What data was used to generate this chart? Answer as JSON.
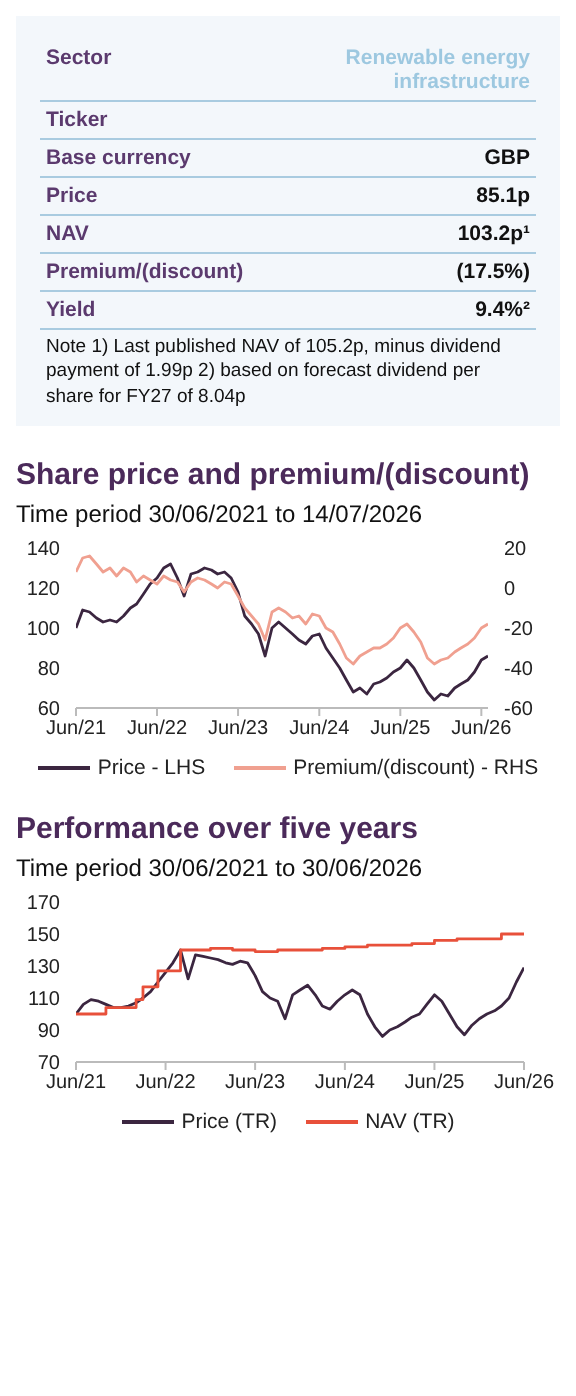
{
  "chart_data": [
    {
      "type": "other",
      "categories": [
        "Sector",
        "Ticker",
        "Base currency",
        "Price",
        "NAV",
        "Premium/(discount)",
        "Yield"
      ],
      "value_labels": [
        "Renewable energy infrastructure",
        null,
        "GBP",
        "85.1p",
        "103.2p¹",
        "(17.5%)",
        "9.4%²"
      ],
      "annotations": [
        "Note 1) Last published NAV of 105.2p, minus dividend payment of 1.99p 2) based on forecast dividend per share for FY27 of 8.04p"
      ]
    },
    {
      "type": "line",
      "title": "Share price and premium/(discount)",
      "subtitle": "Time period 30/06/2021 to 14/07/2026",
      "x": [
        "2021-06",
        "2021-07",
        "2021-08",
        "2021-09",
        "2021-10",
        "2021-11",
        "2021-12",
        "2022-01",
        "2022-02",
        "2022-03",
        "2022-04",
        "2022-05",
        "2022-06",
        "2022-07",
        "2022-08",
        "2022-09",
        "2022-10",
        "2022-11",
        "2022-12",
        "2023-01",
        "2023-02",
        "2023-03",
        "2023-04",
        "2023-05",
        "2023-06",
        "2023-07",
        "2023-08",
        "2023-09",
        "2023-10",
        "2023-11",
        "2023-12",
        "2024-01",
        "2024-02",
        "2024-03",
        "2024-04",
        "2024-05",
        "2024-06",
        "2024-07",
        "2024-08",
        "2024-09",
        "2024-10",
        "2024-11",
        "2024-12",
        "2025-01",
        "2025-02",
        "2025-03",
        "2025-04",
        "2025-05",
        "2025-06",
        "2025-07",
        "2025-08",
        "2025-09",
        "2025-10",
        "2025-11",
        "2025-12",
        "2026-01",
        "2026-02",
        "2026-03",
        "2026-04",
        "2026-05",
        "2026-06",
        "2026-07"
      ],
      "series": [
        {
          "name": "Price - LHS",
          "color": "#3b2640",
          "values": [
            100,
            109,
            108,
            105,
            103,
            104,
            103,
            106,
            110,
            112,
            117,
            122,
            125,
            130,
            132,
            125,
            116,
            127,
            128,
            130,
            129,
            127,
            128,
            125,
            118,
            106,
            102,
            97,
            86,
            100,
            103,
            100,
            97,
            94,
            92,
            96,
            97,
            90,
            85,
            80,
            74,
            68,
            70,
            67,
            72,
            73,
            75,
            78,
            80,
            84,
            80,
            74,
            68,
            64,
            67,
            66,
            70,
            72,
            74,
            78,
            84,
            86
          ]
        },
        {
          "name": "Premium/(discount) - RHS",
          "color": "#f0a090",
          "axis": "y2",
          "values": [
            8,
            15,
            16,
            12,
            8,
            10,
            6,
            10,
            8,
            3,
            6,
            4,
            2,
            6,
            4,
            3,
            -2,
            3,
            5,
            4,
            2,
            0,
            3,
            2,
            -4,
            -10,
            -14,
            -18,
            -26,
            -12,
            -10,
            -12,
            -15,
            -14,
            -18,
            -13,
            -14,
            -20,
            -22,
            -28,
            -35,
            -38,
            -34,
            -32,
            -30,
            -30,
            -28,
            -25,
            -20,
            -18,
            -22,
            -27,
            -35,
            -38,
            -36,
            -35,
            -32,
            -30,
            -28,
            -25,
            -20,
            -18
          ]
        }
      ],
      "xlim": [
        "2021-06",
        "2026-07"
      ],
      "xticks": [
        {
          "value": "2021-06",
          "label": "Jun/21"
        },
        {
          "value": "2022-06",
          "label": "Jun/22"
        },
        {
          "value": "2023-06",
          "label": "Jun/23"
        },
        {
          "value": "2024-06",
          "label": "Jun/24"
        },
        {
          "value": "2025-06",
          "label": "Jun/25"
        },
        {
          "value": "2026-06",
          "label": "Jun/26"
        }
      ],
      "ylim": [
        60,
        140
      ],
      "yticks": [
        60,
        80,
        100,
        120,
        140
      ],
      "y2lim": [
        -60,
        20
      ],
      "y2ticks": [
        -60,
        -40,
        -20,
        0,
        20
      ],
      "legend": "bottom"
    },
    {
      "type": "line",
      "title": "Performance over five years",
      "subtitle": "Time period 30/06/2021 to 30/06/2026",
      "x": [
        "2021-06",
        "2021-07",
        "2021-08",
        "2021-09",
        "2021-10",
        "2021-11",
        "2021-12",
        "2022-01",
        "2022-02",
        "2022-03",
        "2022-04",
        "2022-05",
        "2022-06",
        "2022-07",
        "2022-08",
        "2022-09",
        "2022-10",
        "2022-11",
        "2022-12",
        "2023-01",
        "2023-02",
        "2023-03",
        "2023-04",
        "2023-05",
        "2023-06",
        "2023-07",
        "2023-08",
        "2023-09",
        "2023-10",
        "2023-11",
        "2023-12",
        "2024-01",
        "2024-02",
        "2024-03",
        "2024-04",
        "2024-05",
        "2024-06",
        "2024-07",
        "2024-08",
        "2024-09",
        "2024-10",
        "2024-11",
        "2024-12",
        "2025-01",
        "2025-02",
        "2025-03",
        "2025-04",
        "2025-05",
        "2025-06",
        "2025-07",
        "2025-08",
        "2025-09",
        "2025-10",
        "2025-11",
        "2025-12",
        "2026-01",
        "2026-02",
        "2026-03",
        "2026-04",
        "2026-05",
        "2026-06"
      ],
      "series": [
        {
          "name": "Price (TR)",
          "color": "#3b2640",
          "values": [
            100,
            106,
            109,
            108,
            106,
            104,
            104,
            105,
            107,
            110,
            114,
            120,
            126,
            132,
            140,
            122,
            137,
            136,
            135,
            134,
            132,
            131,
            133,
            132,
            124,
            114,
            110,
            108,
            97,
            112,
            115,
            118,
            112,
            105,
            103,
            108,
            112,
            115,
            112,
            100,
            92,
            86,
            90,
            92,
            95,
            98,
            100,
            106,
            112,
            108,
            100,
            92,
            87,
            93,
            97,
            100,
            102,
            105,
            110,
            120,
            129
          ]
        },
        {
          "name": "NAV (TR)",
          "color": "#e8503a",
          "type": "step",
          "x": [
            "2021-06",
            "2021-10",
            "2022-02",
            "2022-03",
            "2022-05",
            "2022-08",
            "2022-12",
            "2023-03",
            "2023-06",
            "2023-09",
            "2023-12",
            "2024-03",
            "2024-06",
            "2024-09",
            "2024-12",
            "2025-03",
            "2025-06",
            "2025-09",
            "2025-12",
            "2026-03",
            "2026-06"
          ],
          "values": [
            100,
            104,
            109,
            117,
            127,
            140,
            141,
            140,
            139,
            140,
            140,
            141,
            142,
            143,
            143,
            144,
            146,
            147,
            147,
            150,
            150
          ]
        }
      ],
      "xlim": [
        "2021-06",
        "2026-06"
      ],
      "xticks": [
        {
          "value": "2021-06",
          "label": "Jun/21"
        },
        {
          "value": "2022-06",
          "label": "Jun/22"
        },
        {
          "value": "2023-06",
          "label": "Jun/23"
        },
        {
          "value": "2024-06",
          "label": "Jun/24"
        },
        {
          "value": "2025-06",
          "label": "Jun/25"
        },
        {
          "value": "2026-06",
          "label": "Jun/26"
        }
      ],
      "ylim": [
        70,
        170
      ],
      "yticks": [
        70,
        90,
        110,
        130,
        150,
        170
      ],
      "legend": "bottom"
    }
  ]
}
